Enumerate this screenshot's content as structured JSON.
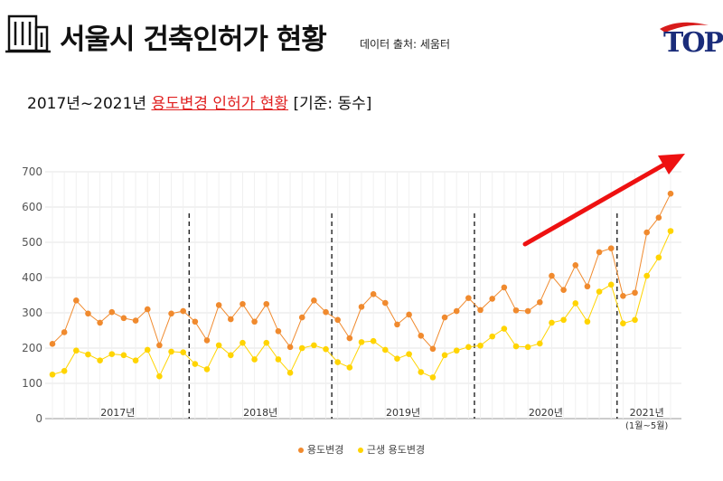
{
  "header": {
    "title": "서울시 건축인허가 현황",
    "source": "데이터 출처: 세움터",
    "logo_text": "TOP"
  },
  "subtitle": {
    "prefix": "2017년~2021년 ",
    "highlight": "용도변경 인허가 현황",
    "suffix": " [기준: 동수]"
  },
  "colors": {
    "series1": "#f08a2e",
    "series2": "#ffd400",
    "arrow": "#ee1111",
    "highlight": "#e02020"
  },
  "chart_data": {
    "type": "line",
    "ylim": [
      0,
      700
    ],
    "yticks": [
      0,
      100,
      200,
      300,
      400,
      500,
      600,
      700
    ],
    "grid": true,
    "legend_position": "bottom",
    "year_labels": [
      "2017년",
      "2018년",
      "2019년",
      "2020년",
      "2021년"
    ],
    "year_note": "(1월~5월)",
    "series": [
      {
        "name": "용도변경",
        "values": [
          212,
          245,
          335,
          298,
          272,
          302,
          285,
          278,
          310,
          208,
          298,
          305,
          275,
          222,
          322,
          282,
          325,
          275,
          325,
          248,
          203,
          287,
          335,
          302,
          280,
          228,
          317,
          353,
          328,
          267,
          295,
          235,
          198,
          287,
          305,
          342,
          308,
          340,
          372,
          307,
          305,
          330,
          405,
          365,
          435,
          375,
          472,
          483,
          348,
          357,
          528,
          570,
          638
        ]
      },
      {
        "name": "근생 용도변경",
        "values": [
          125,
          135,
          193,
          182,
          165,
          183,
          180,
          165,
          195,
          120,
          190,
          188,
          155,
          140,
          208,
          180,
          215,
          168,
          215,
          168,
          130,
          200,
          208,
          197,
          160,
          145,
          217,
          220,
          195,
          170,
          183,
          132,
          117,
          180,
          193,
          203,
          207,
          233,
          255,
          205,
          203,
          213,
          272,
          280,
          327,
          275,
          360,
          380,
          270,
          280,
          405,
          457,
          532
        ]
      }
    ]
  }
}
